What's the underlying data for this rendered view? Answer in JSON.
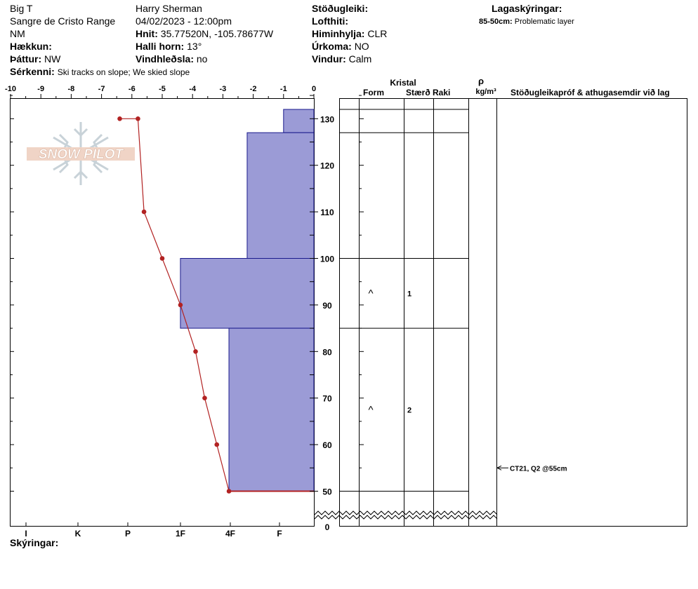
{
  "header": {
    "location": "Big T",
    "range": "Sangre de Cristo Range",
    "state": "NM",
    "elevation_label": "Hækkun:",
    "aspect_label": "Þáttur:",
    "aspect_value": "NW",
    "features_label": "Sérkenni:",
    "features_value": "Ski tracks on slope; We skied slope",
    "observer": "Harry Sherman",
    "datetime": "04/02/2023 - 12:00pm",
    "coords_label": "Hnit:",
    "coords_value": "35.77520N, -105.78677W",
    "slope_label": "Halli horn:",
    "slope_value": "13°",
    "wind_loading_label": "Vindhleðsla:",
    "wind_loading_value": "no",
    "stability_label": "Stöðugleiki:",
    "air_temp_label": "Lofthiti:",
    "sky_label": "Himinhylja:",
    "sky_value": "CLR",
    "precip_label": "Úrkoma:",
    "precip_value": "NO",
    "wind_label": "Vindur:",
    "wind_value": "Calm",
    "layer_notes_title": "Lagaskýringar:",
    "layer_note_range": "85-50cm:",
    "layer_note_text": "Problematic layer"
  },
  "logo": {
    "text": "SNOW PILOT"
  },
  "columns": {
    "crystal": "Kristal",
    "form": "Form",
    "size": "Stærð",
    "moisture": "Raki",
    "density_symbol": "ρ",
    "density_unit": "kg/m³",
    "tests": "Stöðugleikapróf & athugasemdir við lag"
  },
  "footer": {
    "comments_label": "Skýringar:"
  },
  "chart_data": {
    "type": "line",
    "temp_axis": {
      "label_ticks": [
        "-10",
        "-9",
        "-8",
        "-7",
        "-6",
        "-5",
        "-4",
        "-3",
        "-2",
        "-1",
        "0"
      ],
      "range": [
        -10,
        0
      ]
    },
    "height_axis": {
      "ticks": [
        "0",
        "50",
        "60",
        "70",
        "80",
        "90",
        "100",
        "110",
        "120",
        "130"
      ],
      "range_cm": [
        50,
        137
      ]
    },
    "hardness_axis": {
      "ticks": [
        "I",
        "K",
        "P",
        "1F",
        "4F",
        "F"
      ]
    },
    "temperature_profile": {
      "heights_cm": [
        130,
        130,
        110,
        100,
        90,
        80,
        70,
        60,
        50
      ],
      "temps_c": [
        -6.4,
        -5.8,
        -5.6,
        -5.0,
        -4.4,
        -3.9,
        -3.6,
        -3.2,
        -2.8
      ]
    },
    "hardness_layers": [
      {
        "top": 132,
        "bottom": 127,
        "hardness_index": 1.0
      },
      {
        "top": 127,
        "bottom": 100,
        "hardness_index": 2.2
      },
      {
        "top": 100,
        "bottom": 85,
        "hardness_index": 4.4
      },
      {
        "top": 85,
        "bottom": 50,
        "hardness_index": 2.8
      }
    ],
    "layer_boundaries_cm": [
      132,
      127,
      100,
      85,
      50
    ],
    "grain_forms": [
      {
        "height_cm": 92.5,
        "symbol": "^",
        "size": "1"
      },
      {
        "height_cm": 67.5,
        "symbol": "^",
        "size": "2"
      }
    ],
    "stability_tests": [
      {
        "height_cm": 55,
        "text": "CT21, Q2 @55cm"
      }
    ]
  }
}
